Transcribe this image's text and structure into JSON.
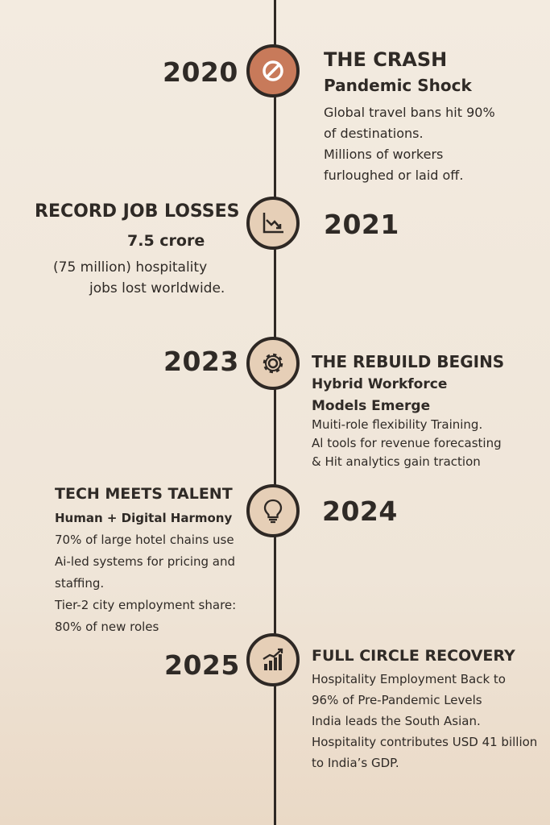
{
  "timeline": [
    {
      "year": "2020",
      "icon": "prohibited-icon",
      "title": "THE CRASH",
      "subtitle": "Pandemic Shock",
      "body": [
        "Global travel bans hit 90%",
        "of destinations.",
        "Millions of workers",
        "furloughed or laid off."
      ]
    },
    {
      "year": "2021",
      "icon": "chart-down-icon",
      "title": "RECORD JOB LOSSES",
      "subtitle": "7.5 crore",
      "body": [
        "(75 million) hospitality",
        "jobs lost worldwide."
      ]
    },
    {
      "year": "2023",
      "icon": "gear-icon",
      "title": "THE REBUILD BEGINS",
      "subtitle": [
        "Hybrid Workforce",
        "Models Emerge"
      ],
      "body": [
        "Muiti-role flexibility Training.",
        "Al tools for revenue forecasting",
        "& Hit analytics gain traction"
      ]
    },
    {
      "year": "2024",
      "icon": "lightbulb-icon",
      "title": "TECH MEETS TALENT",
      "subtitle": "Human + Digital Harmony",
      "body": [
        "70% of large hotel chains use",
        "Ai-led systems for pricing and",
        "staffing.",
        "Tier-2 city employment share:",
        "80% of new roles"
      ]
    },
    {
      "year": "2025",
      "icon": "chart-up-icon",
      "title": "FULL CIRCLE RECOVERY",
      "body": [
        "Hospitality Employment Back to",
        "96% of Pre-Pandemic Levels",
        "India leads the South Asian.",
        "Hospitality contributes USD 41 billion",
        "to India’s GDP."
      ]
    }
  ],
  "colors": {
    "background": "#f3ebe0",
    "line": "#2e2824",
    "node_fill": "#e6cfb7",
    "node_accent": "#c87a5a",
    "text": "#2f2a26"
  }
}
